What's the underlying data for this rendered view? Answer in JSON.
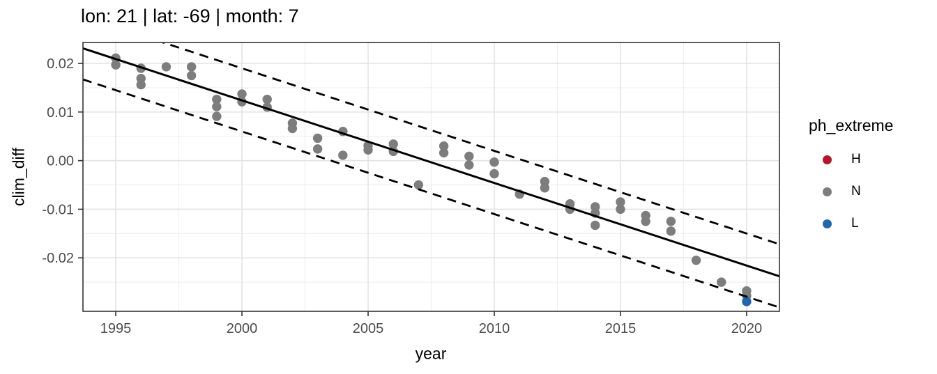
{
  "title": "lon: 21 | lat: -69 | month: 7",
  "chart_data": {
    "type": "scatter",
    "title": "lon: 21 | lat: -69 | month: 7",
    "xlabel": "year",
    "ylabel": "clim_diff",
    "xlim": [
      1993.7,
      2021.3
    ],
    "ylim": [
      -0.031,
      0.0243
    ],
    "grid": true,
    "x_ticks": [
      1995,
      2000,
      2005,
      2010,
      2015,
      2020
    ],
    "x_tick_labels": [
      "1995",
      "2000",
      "2005",
      "2010",
      "2015",
      "2020"
    ],
    "x_minor_ticks": [
      1997.5,
      2002.5,
      2007.5,
      2012.5,
      2017.5
    ],
    "y_ticks": [
      0.02,
      0.01,
      0.0,
      -0.01,
      -0.02
    ],
    "y_tick_labels": [
      "0.02",
      "0.01",
      "0.00",
      "-0.01",
      "-0.02"
    ],
    "y_minor_ticks": [
      0.015,
      0.005,
      -0.005,
      -0.015,
      -0.025
    ],
    "legend": {
      "title": "ph_extreme",
      "position": "right",
      "items": [
        {
          "label": "H",
          "color": "#B2182B"
        },
        {
          "label": "N",
          "color": "#7D7D7D"
        },
        {
          "label": "L",
          "color": "#2166AC"
        }
      ]
    },
    "series": [
      {
        "name": "N",
        "color": "#7D7D7D",
        "points": [
          [
            1995,
            0.0211
          ],
          [
            1995,
            0.0197
          ],
          [
            1996,
            0.019
          ],
          [
            1996,
            0.0169
          ],
          [
            1996,
            0.0156
          ],
          [
            1997,
            0.0193
          ],
          [
            1998,
            0.0193
          ],
          [
            1998,
            0.0175
          ],
          [
            1999,
            0.0126
          ],
          [
            1999,
            0.0111
          ],
          [
            1999,
            0.0091
          ],
          [
            2000,
            0.0137
          ],
          [
            2000,
            0.0121
          ],
          [
            2001,
            0.0126
          ],
          [
            2001,
            0.011
          ],
          [
            2002,
            0.0077
          ],
          [
            2002,
            0.0066
          ],
          [
            2003,
            0.0046
          ],
          [
            2003,
            0.0024
          ],
          [
            2004,
            0.006
          ],
          [
            2004,
            0.0011
          ],
          [
            2005,
            0.0031
          ],
          [
            2005,
            0.0022
          ],
          [
            2006,
            0.0034
          ],
          [
            2006,
            0.0019
          ],
          [
            2007,
            -0.005
          ],
          [
            2008,
            0.003
          ],
          [
            2008,
            0.0016
          ],
          [
            2009,
            0.0009
          ],
          [
            2009,
            -0.0009
          ],
          [
            2010,
            -0.0003
          ],
          [
            2010,
            -0.0027
          ],
          [
            2011,
            -0.0069
          ],
          [
            2012,
            -0.0043
          ],
          [
            2012,
            -0.0056
          ],
          [
            2013,
            -0.0089
          ],
          [
            2013,
            -0.01
          ],
          [
            2014,
            -0.0095
          ],
          [
            2014,
            -0.0108
          ],
          [
            2014,
            -0.0133
          ],
          [
            2015,
            -0.0085
          ],
          [
            2015,
            -0.01
          ],
          [
            2016,
            -0.0113
          ],
          [
            2016,
            -0.0125
          ],
          [
            2017,
            -0.0125
          ],
          [
            2017,
            -0.0145
          ],
          [
            2018,
            -0.0205
          ],
          [
            2019,
            -0.025
          ],
          [
            2020,
            -0.0268
          ],
          [
            2020,
            -0.0278
          ]
        ]
      },
      {
        "name": "L",
        "color": "#2166AC",
        "points": [
          [
            2020,
            -0.029
          ]
        ]
      },
      {
        "name": "H",
        "color": "#B2182B",
        "points": []
      }
    ],
    "lines": [
      {
        "name": "trend-line",
        "style": "solid",
        "x1": 1993.7,
        "y1": 0.0231,
        "x2": 2021.3,
        "y2": -0.0238
      },
      {
        "name": "upper-band-line",
        "style": "dashed",
        "x1": 1993.7,
        "y1": 0.0297,
        "x2": 2021.3,
        "y2": -0.0172
      },
      {
        "name": "lower-band-line",
        "style": "dashed",
        "x1": 1993.7,
        "y1": 0.0167,
        "x2": 2021.3,
        "y2": -0.0302
      }
    ],
    "colors": {
      "point_gray": "#7D7D7D",
      "point_blue": "#2166AC",
      "point_red": "#B2182B",
      "line": "#000000",
      "grid_major": "#E2E2E2",
      "grid_minor": "#EFEFEF",
      "panel_border": "#333333",
      "tick_text": "#4D4D4D"
    }
  }
}
